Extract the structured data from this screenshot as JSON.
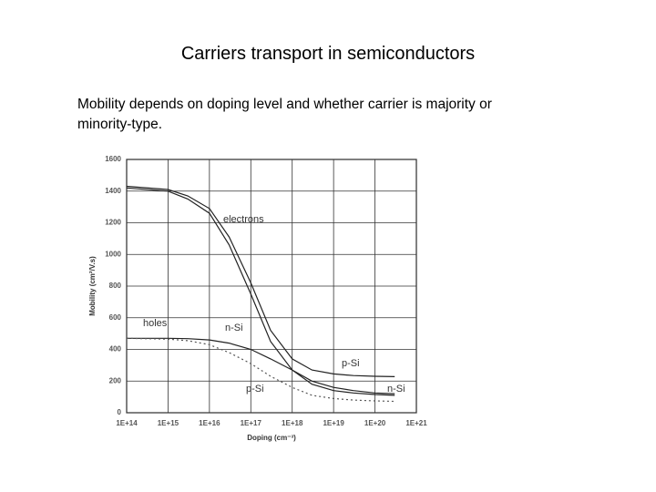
{
  "header": {
    "title": "Carriers transport in semiconductors"
  },
  "body": {
    "text": "Mobility depends on doping level and whether carrier is majority or minority-type."
  },
  "chart_data": {
    "type": "line",
    "x_label": "Doping (cm⁻³)",
    "y_label": "Mobility (cm²/V.s)",
    "x_scale": "log",
    "grid": true,
    "xlim": [
      100000000000000.0,
      1e+21
    ],
    "ylim": [
      0,
      1600
    ],
    "xticks": [
      {
        "value": 100000000000000.0,
        "label": "1E+14"
      },
      {
        "value": 1000000000000000.0,
        "label": "1E+15"
      },
      {
        "value": 1e+16,
        "label": "1E+16"
      },
      {
        "value": 1e+17,
        "label": "1E+17"
      },
      {
        "value": 1e+18,
        "label": "1E+18"
      },
      {
        "value": 1e+19,
        "label": "1E+19"
      },
      {
        "value": 1e+20,
        "label": "1E+20"
      },
      {
        "value": 1e+21,
        "label": "1E+21"
      }
    ],
    "yticks": [
      0,
      200,
      400,
      600,
      800,
      1000,
      1200,
      1400,
      1600
    ],
    "x": [
      100000000000000.0,
      1000000000000000.0,
      3000000000000000.0,
      1e+16,
      3e+16,
      1e+17,
      3e+17,
      1e+18,
      3e+18,
      1e+19,
      3e+19,
      1e+20,
      3e+20
    ],
    "series": [
      {
        "color": "#222222",
        "dashed": false,
        "values": [
          1420,
          1400,
          1350,
          1260,
          1060,
          750,
          450,
          270,
          180,
          140,
          125,
          115,
          110
        ]
      },
      {
        "color": "#222222",
        "dashed": false,
        "values": [
          1430,
          1410,
          1370,
          1290,
          1110,
          820,
          520,
          340,
          270,
          245,
          235,
          230,
          228
        ]
      },
      {
        "color": "#222222",
        "dashed": false,
        "values": [
          470,
          470,
          468,
          460,
          440,
          400,
          340,
          270,
          200,
          160,
          140,
          125,
          120
        ]
      },
      {
        "color": "#555555",
        "dashed": true,
        "values": [
          470,
          465,
          455,
          430,
          380,
          310,
          230,
          160,
          110,
          90,
          80,
          75,
          72
        ]
      }
    ],
    "annotations": [
      "electrons",
      "holes",
      "n-Si",
      "p-Si",
      "p-Si",
      "n-Si"
    ]
  }
}
